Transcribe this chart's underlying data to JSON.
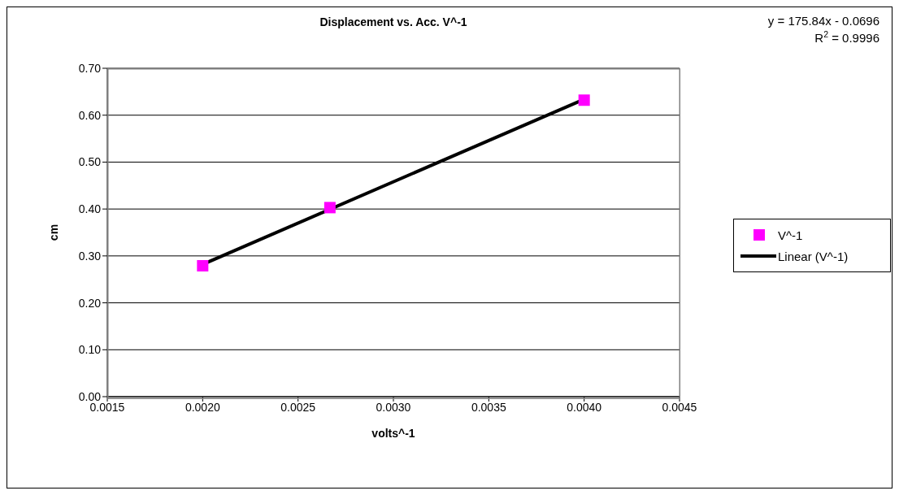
{
  "chart_data": {
    "type": "scatter",
    "title": "Displacement vs. Acc. V^-1",
    "xlabel": "volts^-1",
    "ylabel": "cm",
    "annotations": [
      "y = 175.84x - 0.0696",
      "R$^{2}$ = 0.9996"
    ],
    "series": [
      {
        "name": "V^-1",
        "color": "#ff00ff",
        "marker": "square",
        "x": [
          0.002,
          0.002667,
          0.004
        ],
        "values": [
          0.279,
          0.403,
          0.632
        ]
      },
      {
        "name": "Linear (V^-1)",
        "type": "line",
        "color": "#000000",
        "marker": "none",
        "x": [
          0.002,
          0.004
        ],
        "values": [
          0.282,
          0.634
        ]
      }
    ],
    "xlim": [
      0.0015,
      0.0045
    ],
    "xticks": [
      {
        "value": 0.0015,
        "label": "0.0015"
      },
      {
        "value": 0.002,
        "label": "0.0020"
      },
      {
        "value": 0.0025,
        "label": "0.0025"
      },
      {
        "value": 0.003,
        "label": "0.0030"
      },
      {
        "value": 0.0035,
        "label": "0.0035"
      },
      {
        "value": 0.004,
        "label": "0.0040"
      },
      {
        "value": 0.0045,
        "label": "0.0045"
      }
    ],
    "ylim": [
      0,
      0.7
    ],
    "yticks": [
      {
        "value": 0,
        "label": "0.00"
      },
      {
        "value": 0.1,
        "label": "0.10"
      },
      {
        "value": 0.2,
        "label": "0.20"
      },
      {
        "value": 0.3,
        "label": "0.30"
      },
      {
        "value": 0.4,
        "label": "0.40"
      },
      {
        "value": 0.5,
        "label": "0.50"
      },
      {
        "value": 0.6,
        "label": "0.60"
      },
      {
        "value": 0.7,
        "label": "0.70"
      }
    ],
    "grid": "y",
    "legend": "right"
  }
}
